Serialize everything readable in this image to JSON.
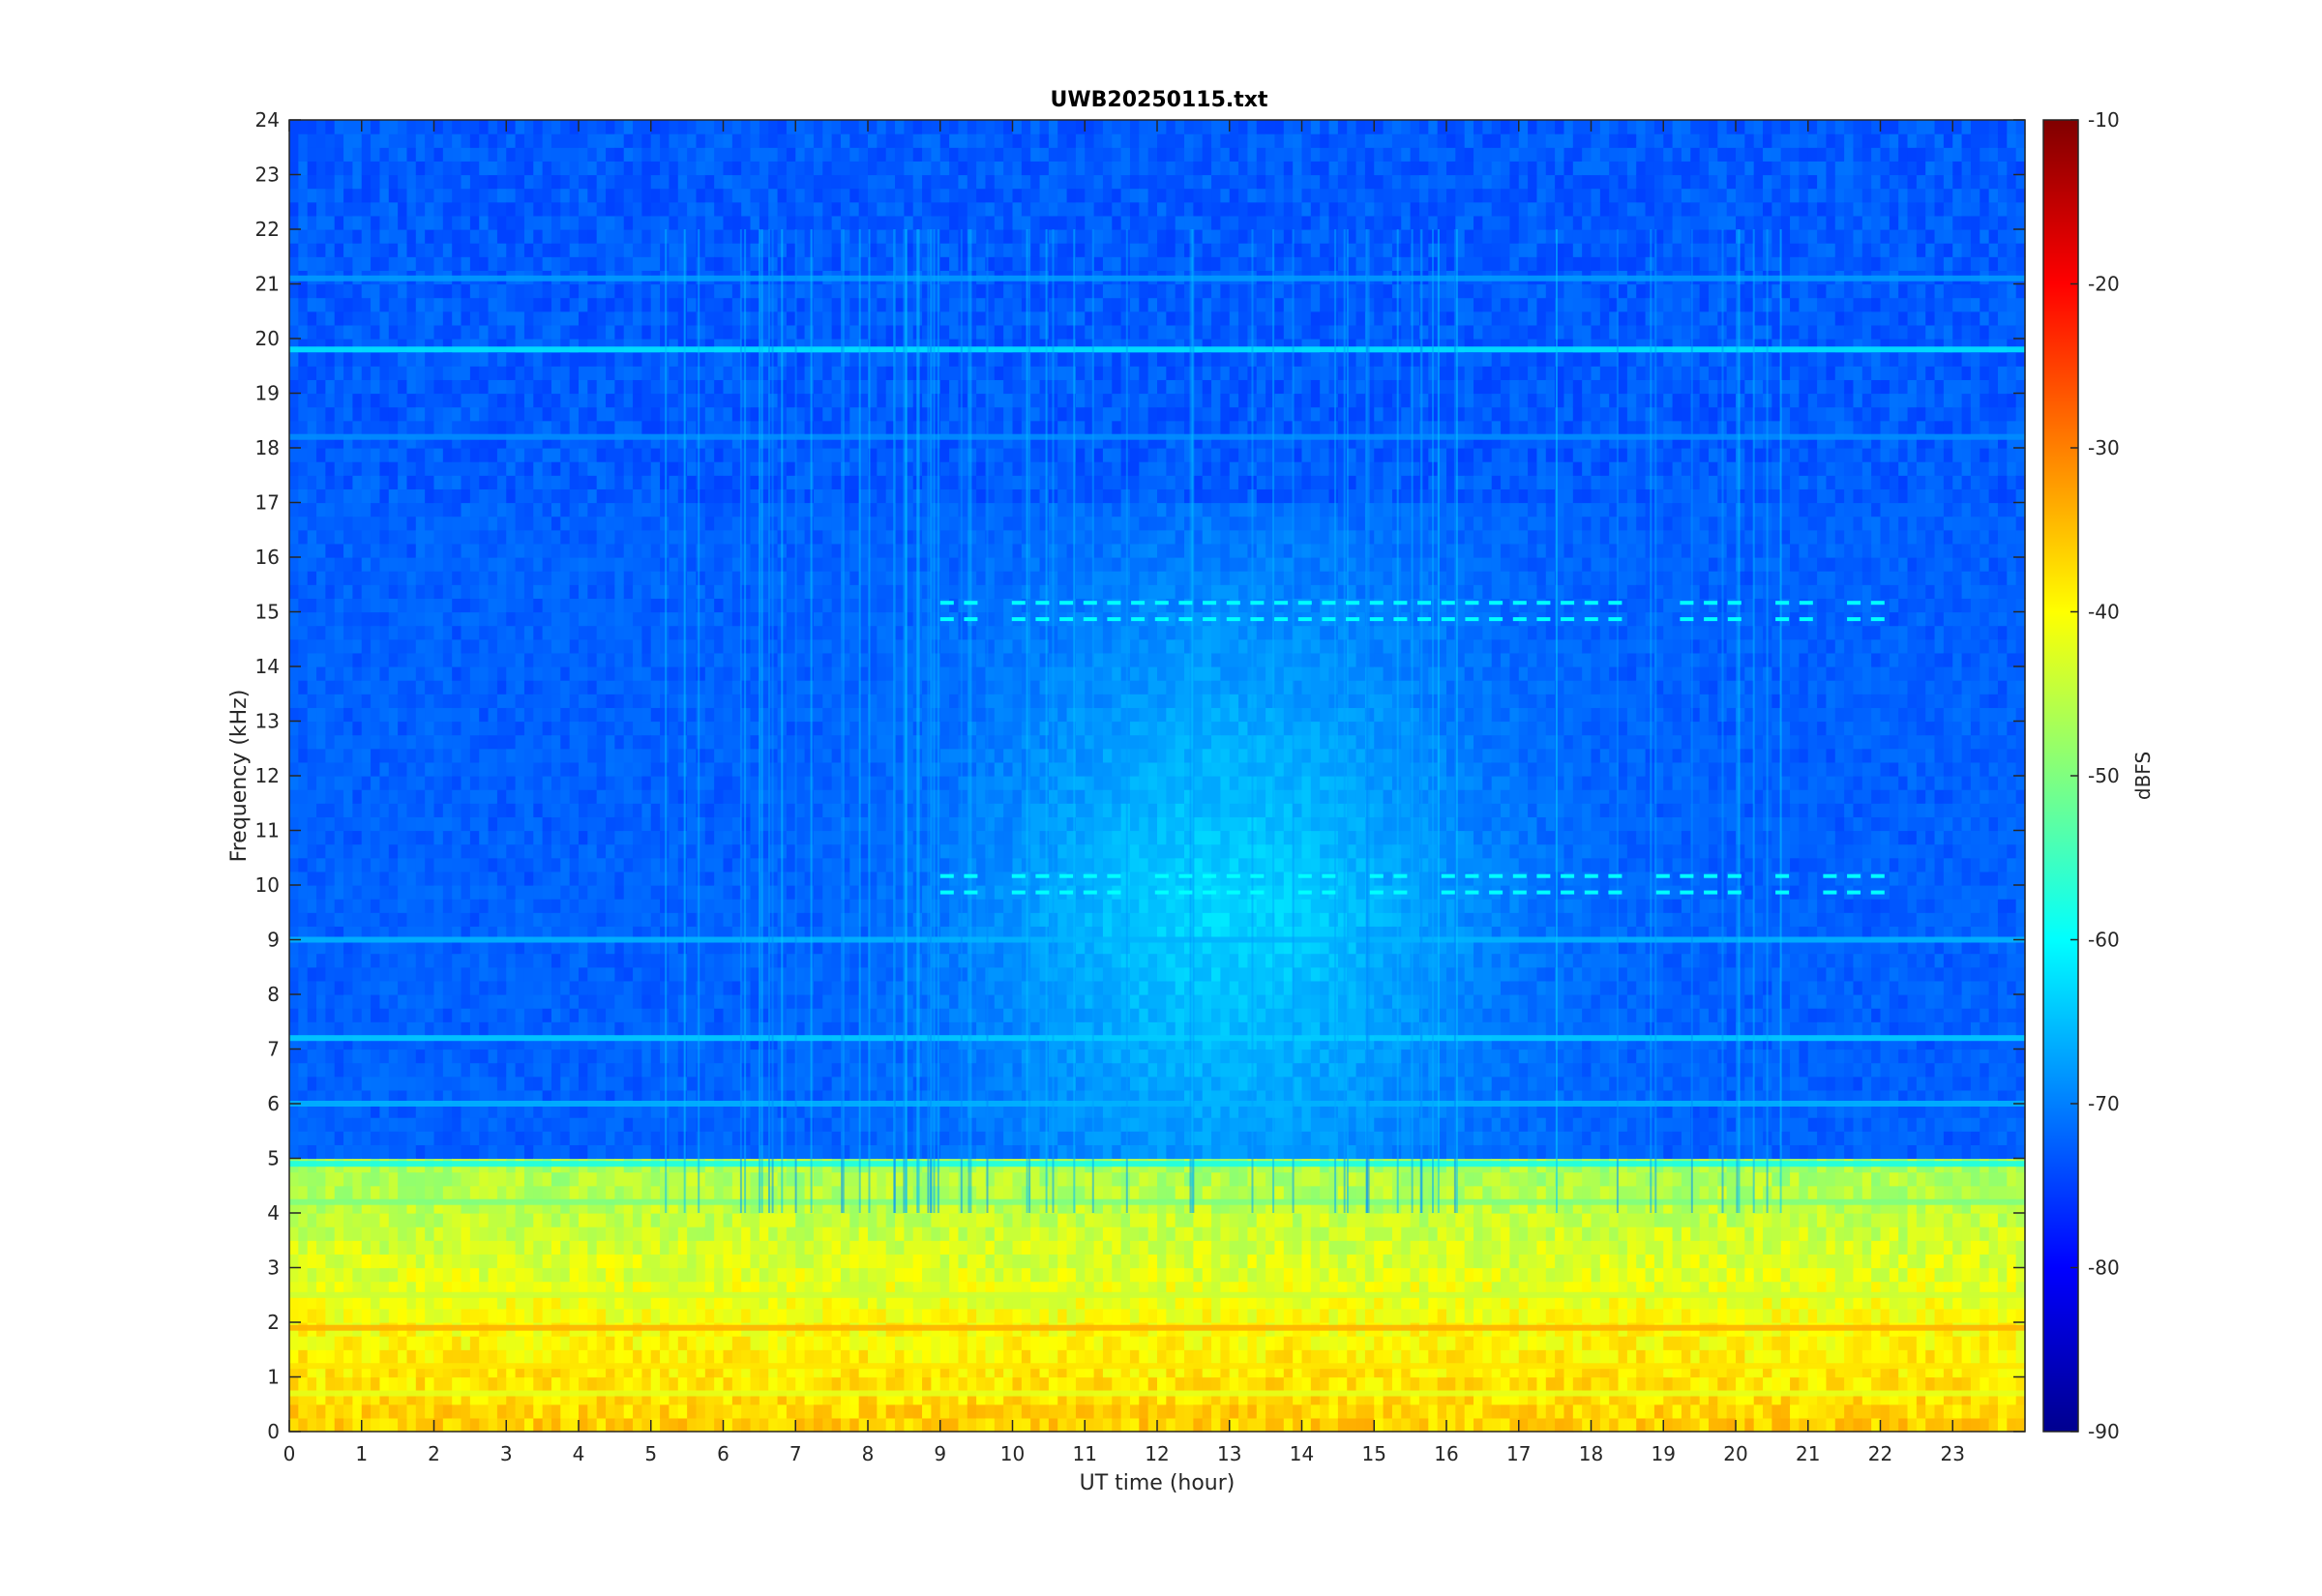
{
  "chart_data": {
    "type": "heatmap",
    "title": "UWB20250115.txt",
    "xlabel": "UT time (hour)",
    "ylabel": "Frequency (kHz)",
    "xlim": [
      0,
      24
    ],
    "ylim": [
      0,
      24
    ],
    "x_ticks": [
      "0",
      "1",
      "2",
      "3",
      "4",
      "5",
      "6",
      "7",
      "8",
      "9",
      "10",
      "11",
      "12",
      "13",
      "14",
      "15",
      "16",
      "17",
      "18",
      "19",
      "20",
      "21",
      "22",
      "23"
    ],
    "y_ticks": [
      "0",
      "1",
      "2",
      "3",
      "4",
      "5",
      "6",
      "7",
      "8",
      "9",
      "10",
      "11",
      "12",
      "13",
      "14",
      "15",
      "16",
      "17",
      "18",
      "19",
      "20",
      "21",
      "22",
      "23",
      "24"
    ],
    "colorbar": {
      "label": "dBFS",
      "colormap": "jet",
      "range": [
        -90,
        -10
      ],
      "ticks": [
        "-10",
        "-20",
        "-30",
        "-40",
        "-50",
        "-60",
        "-70",
        "-80",
        "-90"
      ]
    },
    "background_level_dbfs": -73,
    "frequency_bands": [
      {
        "f_khz": 19.8,
        "level_dbfs": -62
      },
      {
        "f_khz": 21.1,
        "level_dbfs": -68
      },
      {
        "f_khz": 18.2,
        "level_dbfs": -69
      },
      {
        "f_khz": 9.0,
        "level_dbfs": -66
      },
      {
        "f_khz": 7.2,
        "level_dbfs": -64
      },
      {
        "f_khz": 6.0,
        "level_dbfs": -66
      },
      {
        "f_khz": 4.9,
        "level_dbfs": -58
      },
      {
        "f_khz": 4.2,
        "level_dbfs": -50
      },
      {
        "f_khz": 2.5,
        "level_dbfs": -44
      },
      {
        "f_khz": 1.9,
        "level_dbfs": -34
      },
      {
        "f_khz": 1.2,
        "level_dbfs": -38
      },
      {
        "f_khz": 0.7,
        "level_dbfs": -42
      }
    ],
    "daytime_enhancement": {
      "hour_start": 9,
      "hour_end": 17,
      "level_dbfs": -63
    },
    "pulsed_bursts_khz": [
      15.0,
      10.0
    ]
  }
}
